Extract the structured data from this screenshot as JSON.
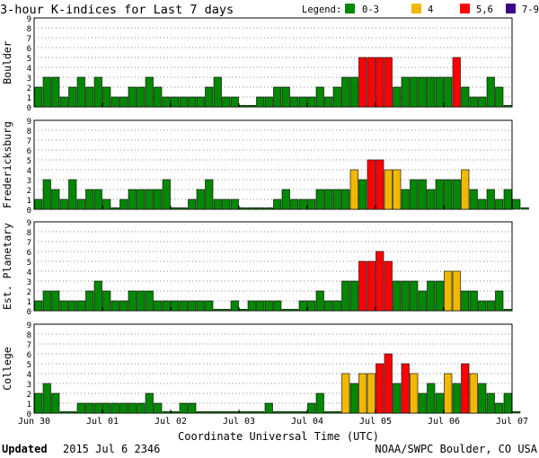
{
  "chart_data": {
    "type": "bar",
    "title": "3-hour K-indices for Last 7 days",
    "legend": {
      "label": "Legend:",
      "placement": "top-right",
      "items": [
        {
          "label": "0-3",
          "color": "#008800"
        },
        {
          "label": "4",
          "color": "#f0b800"
        },
        {
          "label": "5,6",
          "color": "#ff0000"
        },
        {
          "label": "7-9",
          "color": "#3a0088"
        }
      ]
    },
    "xlabel": "Coordinate Universal Time (UTC)",
    "x_ticks": [
      "Jun 30",
      "Jul 01",
      "Jul 02",
      "Jul 03",
      "Jul 04",
      "Jul 05",
      "Jul 06",
      "Jul 07"
    ],
    "ylim": [
      0,
      9
    ],
    "y_ticks": [
      "0",
      "1",
      "2",
      "3",
      "4",
      "5",
      "6",
      "7",
      "8",
      "9"
    ],
    "grid": "dotted horizontal",
    "bars_per_day": 8,
    "series": [
      {
        "name": "Boulder",
        "values": [
          2,
          3,
          3,
          1,
          2,
          3,
          2,
          3,
          2,
          1,
          1,
          2,
          2,
          3,
          2,
          1,
          1,
          1,
          1,
          1,
          2,
          3,
          1,
          1,
          0,
          0,
          1,
          1,
          2,
          2,
          1,
          1,
          1,
          2,
          1,
          2,
          3,
          3,
          5,
          5,
          5,
          5,
          2,
          3,
          3,
          3,
          3,
          3,
          3,
          5,
          2,
          1,
          1,
          3,
          2,
          0
        ]
      },
      {
        "name": "Fredericksburg",
        "values": [
          1,
          3,
          2,
          1,
          3,
          1,
          2,
          2,
          1,
          0,
          1,
          2,
          2,
          2,
          2,
          3,
          0,
          0,
          1,
          2,
          3,
          1,
          1,
          1,
          0,
          0,
          0,
          0,
          1,
          2,
          1,
          1,
          1,
          2,
          2,
          2,
          2,
          4,
          3,
          5,
          5,
          4,
          4,
          2,
          3,
          3,
          2,
          3,
          3,
          3,
          4,
          2,
          1,
          2,
          1,
          2,
          1,
          0
        ]
      },
      {
        "name": "Est. Planetary",
        "values": [
          1,
          2,
          2,
          1,
          1,
          1,
          2,
          3,
          2,
          1,
          1,
          2,
          2,
          2,
          1,
          1,
          1,
          1,
          1,
          1,
          1,
          0,
          0,
          1,
          0,
          1,
          1,
          1,
          1,
          0,
          0,
          1,
          1,
          2,
          1,
          1,
          3,
          3,
          5,
          5,
          6,
          5,
          3,
          3,
          3,
          2,
          3,
          3,
          4,
          4,
          2,
          2,
          1,
          1,
          2,
          0
        ]
      },
      {
        "name": "College",
        "values": [
          2,
          3,
          2,
          0,
          0,
          1,
          1,
          1,
          1,
          1,
          1,
          1,
          1,
          2,
          1,
          0,
          0,
          1,
          1,
          0,
          0,
          0,
          0,
          0,
          0,
          0,
          0,
          1,
          0,
          0,
          0,
          0,
          1,
          2,
          0,
          0,
          4,
          3,
          4,
          4,
          5,
          6,
          3,
          5,
          4,
          2,
          3,
          2,
          4,
          3,
          5,
          4,
          3,
          2,
          1,
          2,
          0
        ]
      }
    ]
  },
  "footer": {
    "updated_label": "Updated",
    "updated_value": "2015 Jul  6 2346",
    "credit": "NOAA/SWPC Boulder, CO USA"
  }
}
